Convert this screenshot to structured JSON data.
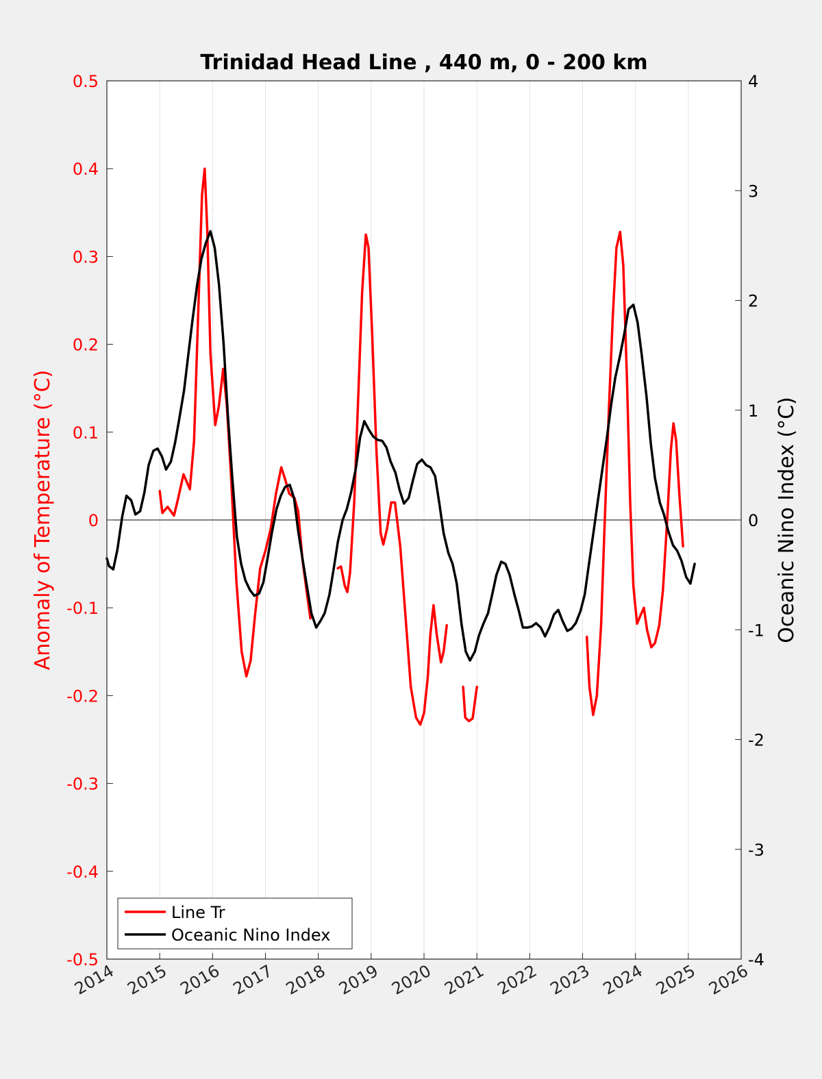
{
  "chart_data": {
    "type": "line",
    "title": "Trinidad Head Line , 440 m, 0 - 200 km",
    "xlabel": "",
    "ylabel_left": "Anomaly of Temperature (°C)",
    "ylabel_right": "Oceanic Nino Index (°C)",
    "xlim": [
      2014,
      2026
    ],
    "ylim_left": [
      -0.5,
      0.5
    ],
    "ylim_right": [
      -4,
      4
    ],
    "x_ticks": [
      "2014",
      "2015",
      "2016",
      "2017",
      "2018",
      "2019",
      "2020",
      "2021",
      "2022",
      "2023",
      "2024",
      "2025",
      "2026"
    ],
    "y_ticks_left": [
      "0.5",
      "0.4",
      "0.3",
      "0.2",
      "0.1",
      "0",
      "-0.1",
      "-0.2",
      "-0.3",
      "-0.4",
      "-0.5"
    ],
    "y_ticks_right": [
      "4",
      "3",
      "2",
      "1",
      "0",
      "-1",
      "-2",
      "-3",
      "-4"
    ],
    "grid": "vertical",
    "legend_position": "bottom-left",
    "colors": {
      "line_tr": "#ff0000",
      "oni": "#000000",
      "left_axis": "#ff0000",
      "right_axis": "#000000"
    },
    "series": [
      {
        "name": "Line Tr",
        "axis": "left",
        "segments": [
          [
            [
              2015.0,
              0.033
            ],
            [
              2015.05,
              0.008
            ],
            [
              2015.15,
              0.015
            ],
            [
              2015.27,
              0.005
            ],
            [
              2015.35,
              0.025
            ],
            [
              2015.45,
              0.052
            ],
            [
              2015.57,
              0.035
            ],
            [
              2015.65,
              0.09
            ],
            [
              2015.72,
              0.22
            ],
            [
              2015.8,
              0.37
            ],
            [
              2015.85,
              0.4
            ],
            [
              2015.9,
              0.33
            ],
            [
              2015.96,
              0.19
            ],
            [
              2016.05,
              0.108
            ],
            [
              2016.12,
              0.13
            ],
            [
              2016.2,
              0.172
            ],
            [
              2016.27,
              0.13
            ],
            [
              2016.35,
              0.05
            ],
            [
              2016.45,
              -0.07
            ],
            [
              2016.55,
              -0.15
            ],
            [
              2016.64,
              -0.178
            ],
            [
              2016.72,
              -0.16
            ],
            [
              2016.8,
              -0.11
            ],
            [
              2016.9,
              -0.055
            ],
            [
              2017.0,
              -0.035
            ],
            [
              2017.1,
              -0.01
            ],
            [
              2017.2,
              0.03
            ],
            [
              2017.3,
              0.06
            ],
            [
              2017.38,
              0.045
            ],
            [
              2017.45,
              0.03
            ],
            [
              2017.55,
              0.025
            ],
            [
              2017.62,
              0.01
            ],
            [
              2017.7,
              -0.045
            ],
            [
              2017.8,
              -0.09
            ],
            [
              2017.85,
              -0.112
            ]
          ],
          [
            [
              2018.37,
              -0.055
            ],
            [
              2018.43,
              -0.053
            ],
            [
              2018.5,
              -0.075
            ],
            [
              2018.55,
              -0.082
            ],
            [
              2018.6,
              -0.06
            ],
            [
              2018.68,
              0.02
            ],
            [
              2018.75,
              0.13
            ],
            [
              2018.83,
              0.26
            ],
            [
              2018.9,
              0.325
            ],
            [
              2018.95,
              0.31
            ],
            [
              2019.02,
              0.21
            ],
            [
              2019.1,
              0.08
            ],
            [
              2019.18,
              -0.015
            ],
            [
              2019.23,
              -0.028
            ],
            [
              2019.3,
              -0.01
            ],
            [
              2019.38,
              0.02
            ],
            [
              2019.45,
              0.02
            ],
            [
              2019.55,
              -0.03
            ],
            [
              2019.65,
              -0.11
            ],
            [
              2019.75,
              -0.19
            ],
            [
              2019.85,
              -0.225
            ],
            [
              2019.93,
              -0.233
            ],
            [
              2020.0,
              -0.22
            ],
            [
              2020.07,
              -0.18
            ],
            [
              2020.12,
              -0.13
            ],
            [
              2020.18,
              -0.097
            ],
            [
              2020.24,
              -0.13
            ],
            [
              2020.32,
              -0.162
            ],
            [
              2020.37,
              -0.15
            ],
            [
              2020.43,
              -0.12
            ]
          ],
          [
            [
              2020.74,
              -0.19
            ],
            [
              2020.78,
              -0.225
            ],
            [
              2020.85,
              -0.229
            ],
            [
              2020.92,
              -0.226
            ],
            [
              2021.0,
              -0.19
            ]
          ],
          [
            [
              2023.08,
              -0.133
            ],
            [
              2023.13,
              -0.19
            ],
            [
              2023.2,
              -0.222
            ],
            [
              2023.27,
              -0.2
            ],
            [
              2023.35,
              -0.12
            ],
            [
              2023.42,
              0.0
            ],
            [
              2023.5,
              0.13
            ],
            [
              2023.57,
              0.23
            ],
            [
              2023.64,
              0.31
            ],
            [
              2023.71,
              0.328
            ],
            [
              2023.77,
              0.29
            ],
            [
              2023.84,
              0.16
            ],
            [
              2023.9,
              0.02
            ],
            [
              2023.96,
              -0.075
            ],
            [
              2024.03,
              -0.118
            ],
            [
              2024.1,
              -0.108
            ],
            [
              2024.16,
              -0.1
            ],
            [
              2024.22,
              -0.125
            ],
            [
              2024.3,
              -0.145
            ],
            [
              2024.37,
              -0.14
            ],
            [
              2024.45,
              -0.12
            ],
            [
              2024.52,
              -0.08
            ],
            [
              2024.6,
              0.0
            ],
            [
              2024.67,
              0.08
            ],
            [
              2024.72,
              0.11
            ],
            [
              2024.77,
              0.09
            ],
            [
              2024.83,
              0.03
            ],
            [
              2024.9,
              -0.03
            ]
          ]
        ]
      },
      {
        "name": "Oceanic Nino Index",
        "axis": "right",
        "segments": [
          [
            [
              2014.0,
              -0.35
            ],
            [
              2014.04,
              -0.42
            ],
            [
              2014.12,
              -0.45
            ],
            [
              2014.2,
              -0.27
            ],
            [
              2014.29,
              0.03
            ],
            [
              2014.37,
              0.22
            ],
            [
              2014.46,
              0.18
            ],
            [
              2014.54,
              0.05
            ],
            [
              2014.63,
              0.08
            ],
            [
              2014.71,
              0.25
            ],
            [
              2014.79,
              0.5
            ],
            [
              2014.88,
              0.63
            ],
            [
              2014.96,
              0.65
            ],
            [
              2015.04,
              0.58
            ],
            [
              2015.12,
              0.46
            ],
            [
              2015.21,
              0.53
            ],
            [
              2015.29,
              0.7
            ],
            [
              2015.37,
              0.92
            ],
            [
              2015.46,
              1.18
            ],
            [
              2015.54,
              1.5
            ],
            [
              2015.62,
              1.82
            ],
            [
              2015.71,
              2.15
            ],
            [
              2015.79,
              2.38
            ],
            [
              2015.87,
              2.52
            ],
            [
              2015.96,
              2.63
            ],
            [
              2016.04,
              2.48
            ],
            [
              2016.12,
              2.15
            ],
            [
              2016.21,
              1.6
            ],
            [
              2016.29,
              0.95
            ],
            [
              2016.37,
              0.4
            ],
            [
              2016.46,
              -0.15
            ],
            [
              2016.54,
              -0.4
            ],
            [
              2016.62,
              -0.55
            ],
            [
              2016.71,
              -0.64
            ],
            [
              2016.79,
              -0.69
            ],
            [
              2016.88,
              -0.67
            ],
            [
              2016.96,
              -0.57
            ],
            [
              2017.04,
              -0.35
            ],
            [
              2017.12,
              -0.12
            ],
            [
              2017.21,
              0.1
            ],
            [
              2017.29,
              0.22
            ],
            [
              2017.37,
              0.3
            ],
            [
              2017.46,
              0.32
            ],
            [
              2017.54,
              0.2
            ],
            [
              2017.62,
              -0.1
            ],
            [
              2017.71,
              -0.38
            ],
            [
              2017.79,
              -0.62
            ],
            [
              2017.87,
              -0.85
            ],
            [
              2017.96,
              -0.98
            ],
            [
              2018.04,
              -0.92
            ],
            [
              2018.12,
              -0.85
            ],
            [
              2018.21,
              -0.68
            ],
            [
              2018.29,
              -0.45
            ],
            [
              2018.37,
              -0.2
            ],
            [
              2018.46,
              0.0
            ],
            [
              2018.54,
              0.1
            ],
            [
              2018.62,
              0.25
            ],
            [
              2018.71,
              0.47
            ],
            [
              2018.79,
              0.75
            ],
            [
              2018.87,
              0.9
            ],
            [
              2018.96,
              0.82
            ],
            [
              2019.04,
              0.76
            ],
            [
              2019.12,
              0.73
            ],
            [
              2019.21,
              0.72
            ],
            [
              2019.29,
              0.66
            ],
            [
              2019.37,
              0.53
            ],
            [
              2019.46,
              0.43
            ],
            [
              2019.54,
              0.27
            ],
            [
              2019.62,
              0.15
            ],
            [
              2019.71,
              0.2
            ],
            [
              2019.79,
              0.36
            ],
            [
              2019.87,
              0.51
            ],
            [
              2019.96,
              0.55
            ],
            [
              2020.04,
              0.5
            ],
            [
              2020.12,
              0.48
            ],
            [
              2020.21,
              0.4
            ],
            [
              2020.29,
              0.15
            ],
            [
              2020.37,
              -0.12
            ],
            [
              2020.46,
              -0.3
            ],
            [
              2020.54,
              -0.4
            ],
            [
              2020.62,
              -0.58
            ],
            [
              2020.71,
              -0.95
            ],
            [
              2020.79,
              -1.2
            ],
            [
              2020.87,
              -1.28
            ],
            [
              2020.96,
              -1.2
            ],
            [
              2021.04,
              -1.05
            ],
            [
              2021.12,
              -0.95
            ],
            [
              2021.21,
              -0.85
            ],
            [
              2021.29,
              -0.68
            ],
            [
              2021.37,
              -0.5
            ],
            [
              2021.46,
              -0.38
            ],
            [
              2021.54,
              -0.4
            ],
            [
              2021.62,
              -0.5
            ],
            [
              2021.71,
              -0.68
            ],
            [
              2021.79,
              -0.82
            ],
            [
              2021.87,
              -0.98
            ],
            [
              2021.96,
              -0.98
            ],
            [
              2022.04,
              -0.97
            ],
            [
              2022.12,
              -0.94
            ],
            [
              2022.21,
              -0.98
            ],
            [
              2022.29,
              -1.06
            ],
            [
              2022.37,
              -0.98
            ],
            [
              2022.46,
              -0.86
            ],
            [
              2022.54,
              -0.82
            ],
            [
              2022.62,
              -0.92
            ],
            [
              2022.71,
              -1.01
            ],
            [
              2022.79,
              -0.99
            ],
            [
              2022.87,
              -0.94
            ],
            [
              2022.96,
              -0.83
            ],
            [
              2023.04,
              -0.68
            ],
            [
              2023.12,
              -0.4
            ],
            [
              2023.21,
              -0.1
            ],
            [
              2023.29,
              0.18
            ],
            [
              2023.37,
              0.45
            ],
            [
              2023.46,
              0.75
            ],
            [
              2023.54,
              1.05
            ],
            [
              2023.62,
              1.3
            ],
            [
              2023.71,
              1.5
            ],
            [
              2023.79,
              1.7
            ],
            [
              2023.87,
              1.92
            ],
            [
              2023.96,
              1.96
            ],
            [
              2024.04,
              1.8
            ],
            [
              2024.12,
              1.5
            ],
            [
              2024.21,
              1.12
            ],
            [
              2024.29,
              0.7
            ],
            [
              2024.37,
              0.38
            ],
            [
              2024.46,
              0.16
            ],
            [
              2024.54,
              0.05
            ],
            [
              2024.62,
              -0.1
            ],
            [
              2024.71,
              -0.23
            ],
            [
              2024.79,
              -0.28
            ],
            [
              2024.87,
              -0.37
            ],
            [
              2024.96,
              -0.52
            ],
            [
              2025.04,
              -0.58
            ],
            [
              2025.12,
              -0.4
            ]
          ]
        ]
      }
    ]
  }
}
